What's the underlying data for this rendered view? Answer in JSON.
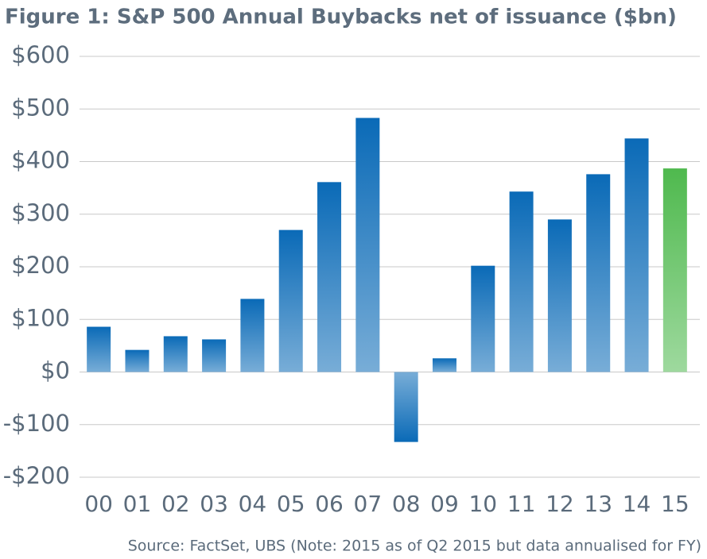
{
  "chart_data": {
    "type": "bar",
    "title": "Figure 1: S&P 500 Annual Buybacks net of issuance ($bn)",
    "source": "Source: FactSet, UBS (Note: 2015 as of Q2 2015 but data annualised for FY)",
    "categories": [
      "00",
      "01",
      "02",
      "03",
      "04",
      "05",
      "06",
      "07",
      "08",
      "09",
      "10",
      "11",
      "12",
      "13",
      "14",
      "15"
    ],
    "values": [
      86,
      42,
      68,
      62,
      139,
      270,
      361,
      483,
      -133,
      26,
      202,
      343,
      290,
      376,
      444,
      387
    ],
    "colors": [
      "#0a6ab7",
      "#0a6ab7",
      "#0a6ab7",
      "#0a6ab7",
      "#0a6ab7",
      "#0a6ab7",
      "#0a6ab7",
      "#0a6ab7",
      "#0a6ab7",
      "#0a6ab7",
      "#0a6ab7",
      "#0a6ab7",
      "#0a6ab7",
      "#0a6ab7",
      "#0a6ab7",
      "#4fb94e"
    ],
    "ylim": [
      -200,
      600
    ],
    "yticks": [
      {
        "value": -200,
        "label": "-$200"
      },
      {
        "value": -100,
        "label": "-$100"
      },
      {
        "value": 0,
        "label": "$0"
      },
      {
        "value": 100,
        "label": "$100"
      },
      {
        "value": 200,
        "label": "$200"
      },
      {
        "value": 300,
        "label": "$300"
      },
      {
        "value": 400,
        "label": "$400"
      },
      {
        "value": 500,
        "label": "$500"
      },
      {
        "value": 600,
        "label": "$600"
      }
    ],
    "grid": true
  }
}
